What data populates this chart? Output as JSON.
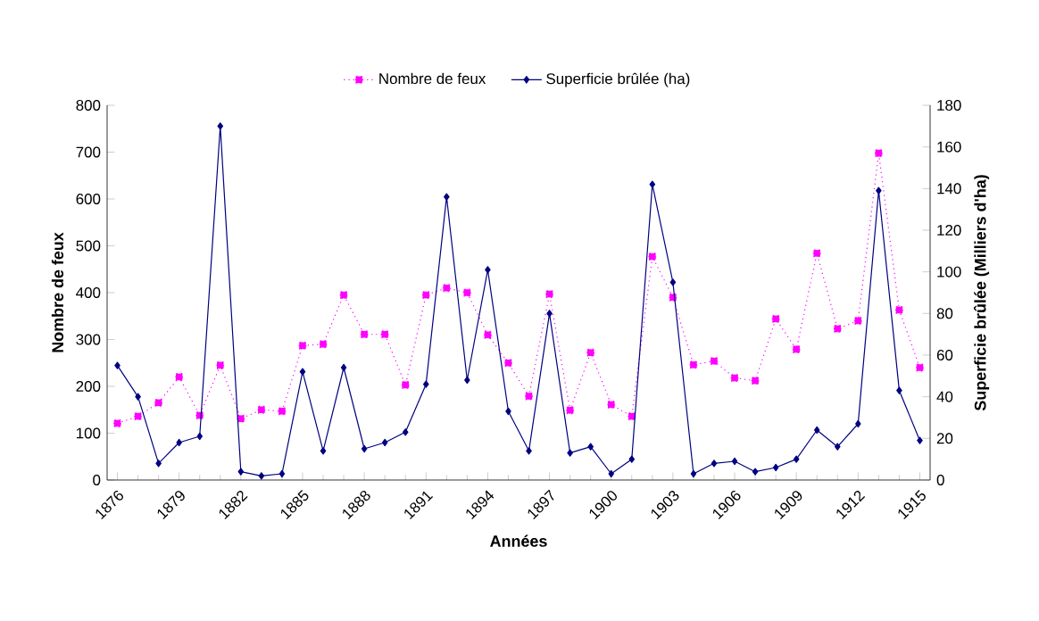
{
  "chart_data": {
    "type": "line",
    "xlabel": "Années",
    "ylabel": "Nombre de feux",
    "y2label": "Superficie brûlée (Milliers d'ha)",
    "x": [
      1876,
      1877,
      1878,
      1879,
      1880,
      1881,
      1882,
      1883,
      1884,
      1885,
      1886,
      1887,
      1888,
      1889,
      1890,
      1891,
      1892,
      1893,
      1894,
      1895,
      1896,
      1897,
      1898,
      1899,
      1900,
      1901,
      1902,
      1903,
      1904,
      1905,
      1906,
      1907,
      1908,
      1909,
      1910,
      1911,
      1912,
      1913,
      1914,
      1915
    ],
    "series": [
      {
        "name": "Nombre de feux",
        "color": "#ff00ff",
        "marker": "square",
        "line_style": "dotted",
        "values": [
          121,
          136,
          165,
          220,
          138,
          245,
          131,
          150,
          147,
          287,
          290,
          395,
          311,
          311,
          203,
          395,
          410,
          400,
          310,
          250,
          179,
          397,
          149,
          272,
          161,
          136,
          477,
          390,
          246,
          254,
          218,
          212,
          344,
          279,
          484,
          323,
          340,
          698,
          363,
          240
        ]
      },
      {
        "name": "Superficie brûlée (ha)",
        "color": "#000080",
        "marker": "diamond",
        "line_style": "solid",
        "axis": "y2",
        "values": [
          55,
          40,
          8,
          18,
          21,
          170,
          4,
          2,
          3,
          52,
          14,
          54,
          15,
          18,
          23,
          46,
          136,
          48,
          101,
          33,
          14,
          80,
          13,
          16,
          3,
          10,
          142,
          95,
          3,
          8,
          9,
          4,
          6,
          10,
          24,
          16,
          27,
          139,
          43,
          19
        ]
      }
    ],
    "xlim": [
      1875.5,
      1915.5
    ],
    "xticks": [
      1876,
      1879,
      1882,
      1885,
      1888,
      1891,
      1894,
      1897,
      1900,
      1903,
      1906,
      1909,
      1912,
      1915
    ],
    "ylim": [
      0,
      800
    ],
    "yticks": [
      0,
      100,
      200,
      300,
      400,
      500,
      600,
      700,
      800
    ],
    "y2lim": [
      0,
      180
    ],
    "y2ticks": [
      0,
      20,
      40,
      60,
      80,
      100,
      120,
      140,
      160,
      180
    ],
    "grid": false,
    "legend": "top"
  }
}
